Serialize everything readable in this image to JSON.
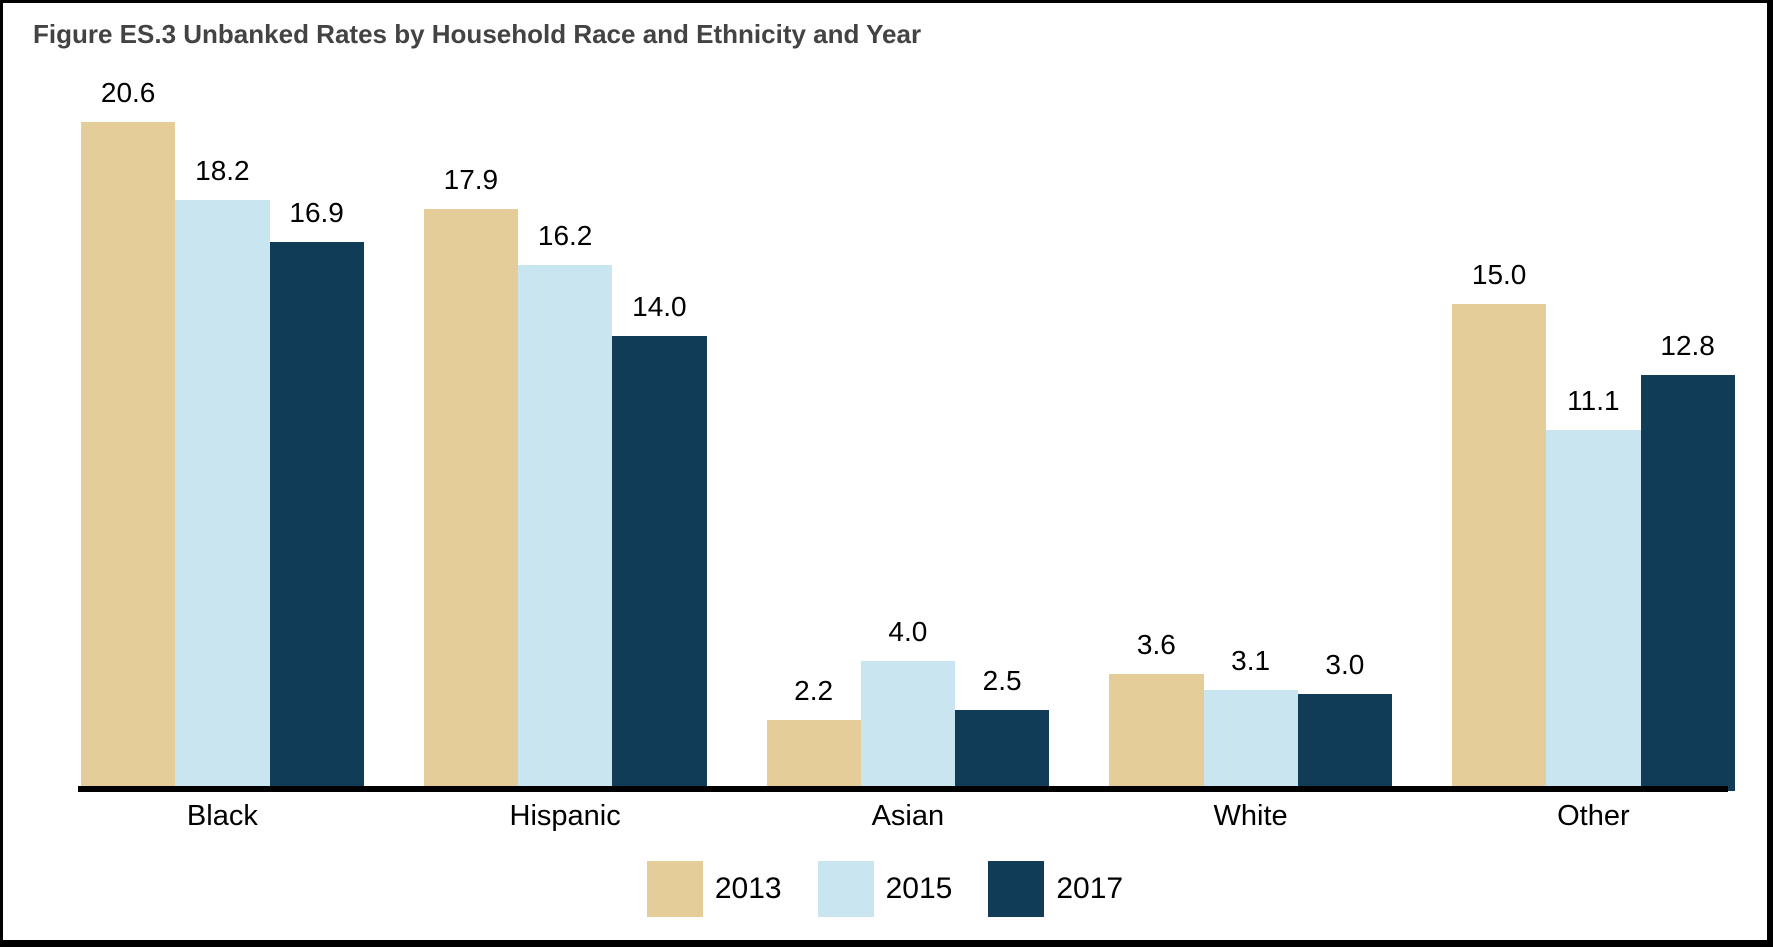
{
  "title": "Figure ES.3 Unbanked Rates by Household Race and Ethnicity and Year",
  "chart_data": {
    "type": "bar",
    "title": "Figure ES.3 Unbanked Rates by Household Race and Ethnicity and Year",
    "categories": [
      "Black",
      "Hispanic",
      "Asian",
      "White",
      "Other"
    ],
    "series": [
      {
        "name": "2013",
        "color": "#e5cd99",
        "values": [
          20.6,
          17.9,
          2.2,
          3.6,
          15.0
        ]
      },
      {
        "name": "2015",
        "color": "#c8e5f0",
        "values": [
          18.2,
          16.2,
          4.0,
          3.1,
          11.1
        ]
      },
      {
        "name": "2017",
        "color": "#113c57",
        "values": [
          16.9,
          14.0,
          2.5,
          3.0,
          12.8
        ]
      }
    ],
    "value_labels_shown": true,
    "value_label_decimals": 1,
    "xlabel": "",
    "ylabel": "",
    "ylim": [
      0,
      22
    ],
    "grid": false,
    "y_axis_shown": false,
    "legend_position": "bottom"
  }
}
